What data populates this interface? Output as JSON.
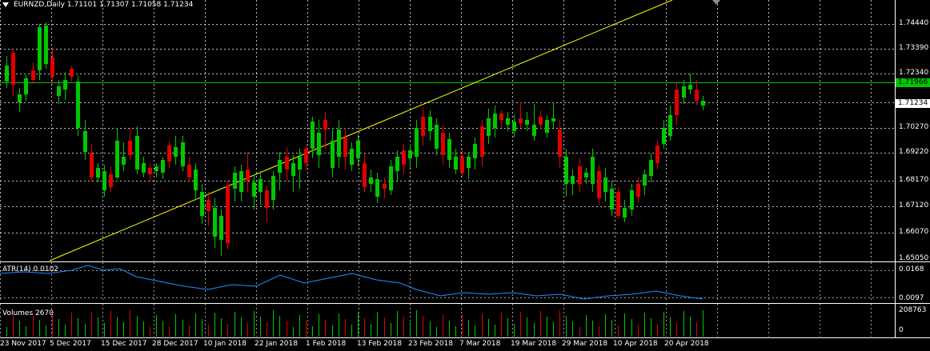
{
  "chart": {
    "symbol": "EURNZD,Daily",
    "ohlc": "1.71101 1.71307 1.71058 1.71234",
    "current_price": "1.71234",
    "hline_price": "1.71966"
  },
  "price_axis": [
    "1.74440",
    "1.73390",
    "1.72340",
    "1.71966",
    "1.71234",
    "1.70270",
    "1.69220",
    "1.68170",
    "1.67120",
    "1.66070",
    "1.65050"
  ],
  "time_axis": [
    "23 Nov 2017",
    "5 Dec 2017",
    "15 Dec 2017",
    "28 Dec 2017",
    "10 Jan 2018",
    "22 Jan 2018",
    "1 Feb 2018",
    "13 Feb 2018",
    "23 Feb 2018",
    "7 Mar 2018",
    "19 Mar 2018",
    "29 Mar 2018",
    "10 Apr 2018",
    "20 Apr 2018"
  ],
  "atr": {
    "title": "ATR(14) 0.0102",
    "levels": [
      "0.0168",
      "0.0097"
    ]
  },
  "volumes": {
    "title": "Volumes 2670",
    "levels": [
      "208763",
      "0"
    ]
  },
  "colors": {
    "bull": "#00c800",
    "bear": "#e00000",
    "hline": "#00c800",
    "trendline": "#ffff00",
    "atr": "#1e90ff",
    "grid": "#ffffff"
  }
}
